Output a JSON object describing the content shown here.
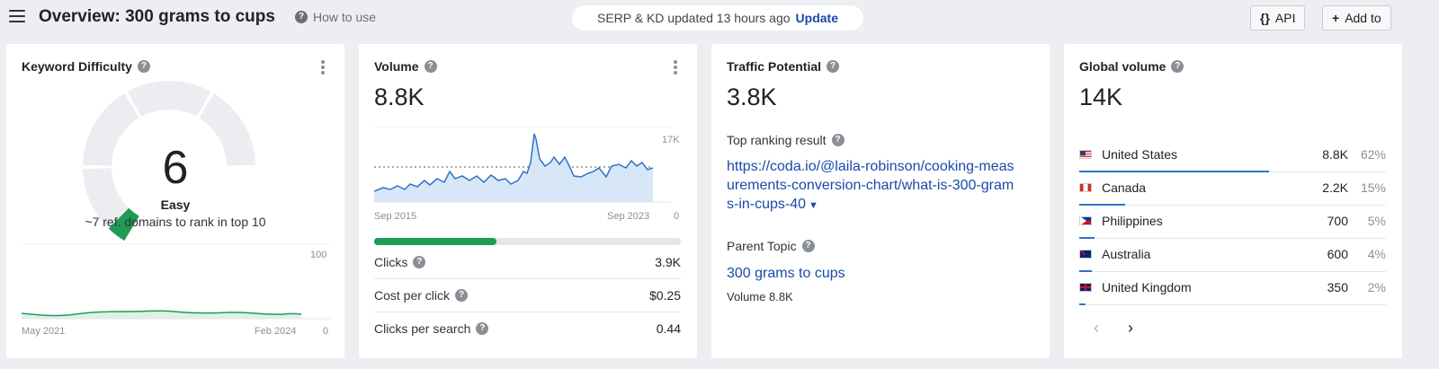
{
  "header": {
    "title": "Overview: 300 grams to cups",
    "how_to_use": "How to use",
    "update_status": "SERP & KD updated 13 hours ago",
    "update_link": "Update",
    "api_label": "API",
    "api_icon": "{}",
    "add_to_label": "Add to",
    "add_icon": "+"
  },
  "keyword_difficulty": {
    "title": "Keyword Difficulty",
    "value": "6",
    "value_fraction": 0.06,
    "label": "Easy",
    "subtitle": "~7 ref. domains to rank in top 10",
    "gauge_color": "#1e9b56",
    "chart_x_start": "May 2021",
    "chart_x_end": "Feb 2024",
    "chart_y_max": "100",
    "chart_y_min": "0"
  },
  "volume": {
    "title": "Volume",
    "value": "8.8K",
    "chart_x_start": "Sep 2015",
    "chart_x_end": "Sep 2023",
    "chart_y_max": "17K",
    "chart_y_min": "0",
    "clicks_share": 0.4,
    "metrics": [
      {
        "label": "Clicks",
        "value": "3.9K"
      },
      {
        "label": "Cost per click",
        "value": "$0.25"
      },
      {
        "label": "Clicks per search",
        "value": "0.44"
      }
    ]
  },
  "traffic_potential": {
    "title": "Traffic Potential",
    "value": "3.8K",
    "top_result_label": "Top ranking result",
    "top_result_url_line1": "https://coda.io/@laila-robinson/cooking-meas",
    "top_result_url_line2": "urements-conversion-chart/what-is-300-gram",
    "top_result_url_line3": "s-in-cups-40",
    "parent_topic_label": "Parent Topic",
    "parent_topic": "300 grams to cups",
    "parent_volume": "Volume 8.8K"
  },
  "global_volume": {
    "title": "Global volume",
    "value": "14K",
    "countries": [
      {
        "name": "United States",
        "value": "8.8K",
        "pct": "62%",
        "share": 0.62
      },
      {
        "name": "Canada",
        "value": "2.2K",
        "pct": "15%",
        "share": 0.15
      },
      {
        "name": "Philippines",
        "value": "700",
        "pct": "5%",
        "share": 0.05
      },
      {
        "name": "Australia",
        "value": "600",
        "pct": "4%",
        "share": 0.04
      },
      {
        "name": "United Kingdom",
        "value": "350",
        "pct": "2%",
        "share": 0.02
      }
    ],
    "prev_icon": "‹",
    "next_icon": "›"
  }
}
